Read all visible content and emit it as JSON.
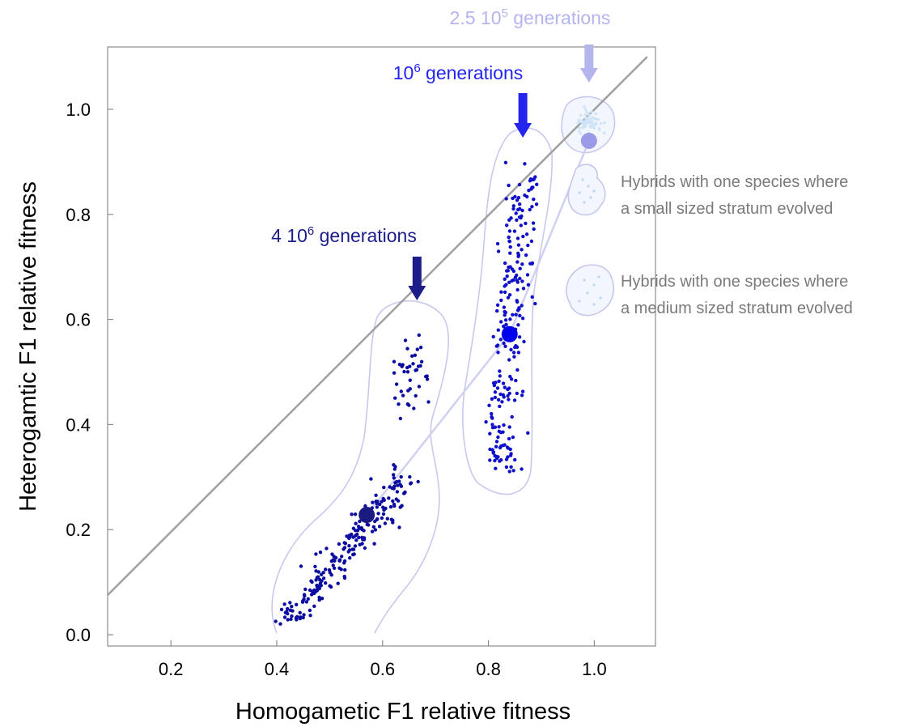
{
  "chart_data": {
    "type": "scatter",
    "xlabel": "Homogametic  F1 relative fitness",
    "ylabel": "Heterogamtic  F1 relative fitness",
    "xlim": [
      0.08,
      1.12
    ],
    "ylim": [
      -0.02,
      1.12
    ],
    "xticks": [
      "0.2",
      "0.4",
      "0.6",
      "0.8",
      "1.0"
    ],
    "yticks": [
      "0.0",
      "0.2",
      "0.4",
      "0.6",
      "0.8",
      "1.0"
    ],
    "grid": false,
    "reference_line": {
      "from": [
        0.08,
        0.075
      ],
      "to": [
        1.1,
        1.1
      ],
      "color": "#a0a0a0"
    },
    "trajectory": [
      [
        0.57,
        0.228
      ],
      [
        0.84,
        0.572
      ],
      [
        0.99,
        0.94
      ]
    ],
    "means": [
      {
        "x": 0.57,
        "y": 0.228,
        "color": "#1a1a80"
      },
      {
        "x": 0.84,
        "y": 0.572,
        "color": "#0000ee"
      },
      {
        "x": 0.99,
        "y": 0.94,
        "color": "#9a9ae8"
      }
    ],
    "series": [
      {
        "generations_label": "4 10",
        "exp": "6",
        "rest": " generations",
        "color": "#1c1c8a",
        "point_color": "#0c0ca0",
        "arrow_x": 0.665,
        "n": 260,
        "points_seed": 11
      },
      {
        "generations_label": "10",
        "exp": "6",
        "rest": " generations",
        "color": "#2424ee",
        "point_color": "#1010c8",
        "arrow_x": 0.865,
        "n": 230,
        "points_seed": 23
      },
      {
        "generations_label": "2.5 10",
        "exp": "5",
        "rest": " generations",
        "color": "#b4b4ee",
        "point_color": "#cfe4f7",
        "arrow_x": 0.99,
        "n": 60,
        "points_seed": 37
      }
    ],
    "legend": [
      {
        "line1": "Hybrids with one species where",
        "line2": "a small sized stratum evolved"
      },
      {
        "line1": "Hybrids with one species where",
        "line2": "a medium sized stratum evolved"
      }
    ]
  }
}
